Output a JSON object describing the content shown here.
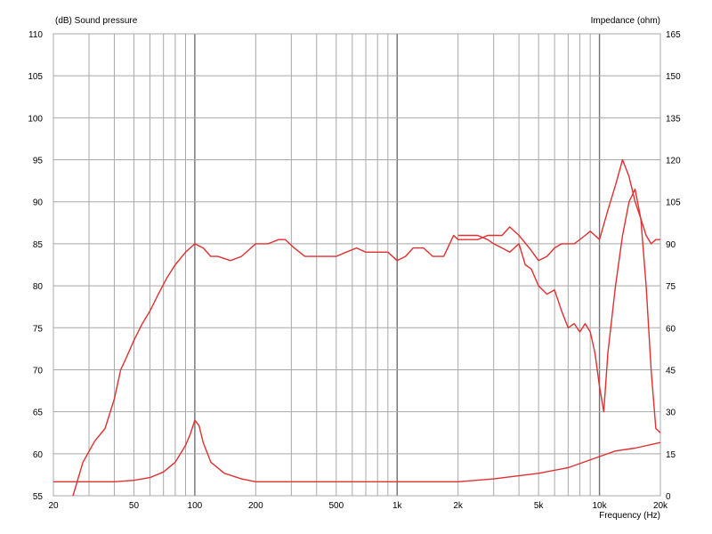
{
  "chart_data": {
    "type": "line",
    "title": "",
    "xlabel": "Frequency  (Hz)",
    "ylabel_left": "(dB)  Sound pressure",
    "ylabel_right": "Impedance  (ohm)",
    "x_scale": "log",
    "xlim": [
      20,
      20000
    ],
    "ylim_left": [
      55,
      110
    ],
    "ylim_right": [
      0,
      165
    ],
    "grid": true,
    "legend": "none",
    "line_color": "#e03030",
    "x_tick_labels": [
      {
        "value": 20,
        "label": "20"
      },
      {
        "value": 50,
        "label": "50"
      },
      {
        "value": 100,
        "label": "100"
      },
      {
        "value": 200,
        "label": "200"
      },
      {
        "value": 500,
        "label": "500"
      },
      {
        "value": 1000,
        "label": "1k"
      },
      {
        "value": 2000,
        "label": "2k"
      },
      {
        "value": 5000,
        "label": "5k"
      },
      {
        "value": 10000,
        "label": "10k"
      },
      {
        "value": 20000,
        "label": "20k"
      }
    ],
    "y_left_ticks": [
      55,
      60,
      65,
      70,
      75,
      80,
      85,
      90,
      95,
      100,
      105,
      110
    ],
    "y_right_ticks": [
      0,
      15,
      30,
      45,
      60,
      75,
      90,
      105,
      120,
      135,
      150,
      165
    ],
    "series": [
      {
        "axis": "left",
        "x": [
          25,
          28,
          32,
          36,
          40,
          43,
          46,
          50,
          55,
          60,
          66,
          73,
          80,
          90,
          100,
          110,
          120,
          130,
          150,
          170,
          200,
          230,
          260,
          280,
          310,
          350,
          400,
          450,
          500,
          560,
          630,
          700,
          800,
          900,
          1000,
          1100,
          1200,
          1350,
          1500,
          1700,
          1900,
          2000,
          2200,
          2500,
          2800,
          3000,
          3300,
          3600,
          4000,
          4500,
          5000,
          5500,
          6000,
          6500,
          7000,
          7500,
          8000,
          8500,
          9000,
          9500,
          10000,
          11000,
          12000,
          13000,
          14000,
          15000,
          16000,
          17000,
          18000,
          19000,
          20000
        ],
        "y": [
          55,
          59,
          61.5,
          63,
          66.5,
          70,
          71.5,
          73.5,
          75.5,
          77,
          79,
          81,
          82.5,
          84,
          85,
          84.5,
          83.5,
          83.5,
          83,
          83.5,
          85,
          85,
          85.5,
          85.5,
          84.5,
          83.5,
          83.5,
          83.5,
          83.5,
          84,
          84.5,
          84,
          84,
          84,
          83,
          83.5,
          84.5,
          84.5,
          83.5,
          83.5,
          86,
          85.5,
          85.5,
          85.5,
          86,
          86,
          86,
          87,
          86,
          84.5,
          83,
          83.5,
          84.5,
          85,
          85,
          85,
          85.5,
          86,
          86.5,
          86,
          85.5,
          89,
          92,
          95,
          93,
          90,
          88,
          86,
          85,
          85.5,
          85.5
        ]
      },
      {
        "axis": "left",
        "x": [
          2000,
          2200,
          2500,
          2800,
          3000,
          3300,
          3600,
          4000,
          4300,
          4600,
          5000,
          5500,
          6000,
          6500,
          7000,
          7500,
          8000,
          8500,
          9000,
          9500,
          10000,
          10500,
          11000,
          12000,
          13000,
          14000,
          15000,
          16000,
          17000,
          18000,
          19000,
          20000
        ],
        "y": [
          86,
          86,
          86,
          85.5,
          85,
          84.5,
          84,
          85,
          82.5,
          82,
          80,
          79,
          79.5,
          77,
          75,
          75.5,
          74.5,
          75.5,
          74.5,
          72,
          68,
          65,
          72,
          80,
          86,
          90,
          91.5,
          88,
          80,
          70,
          63,
          62.5
        ]
      },
      {
        "axis": "right",
        "x": [
          20,
          30,
          40,
          50,
          60,
          70,
          80,
          90,
          95,
          100,
          105,
          110,
          120,
          140,
          170,
          200,
          300,
          500,
          1000,
          2000,
          3000,
          5000,
          7000,
          10000,
          12000,
          15000,
          20000
        ],
        "y": [
          5,
          5,
          5,
          5.5,
          6.5,
          8.5,
          12,
          18,
          22,
          27,
          25,
          19,
          12,
          8,
          6,
          5,
          5,
          5,
          5,
          5,
          6,
          8,
          10,
          14,
          16,
          17,
          19
        ]
      }
    ]
  }
}
